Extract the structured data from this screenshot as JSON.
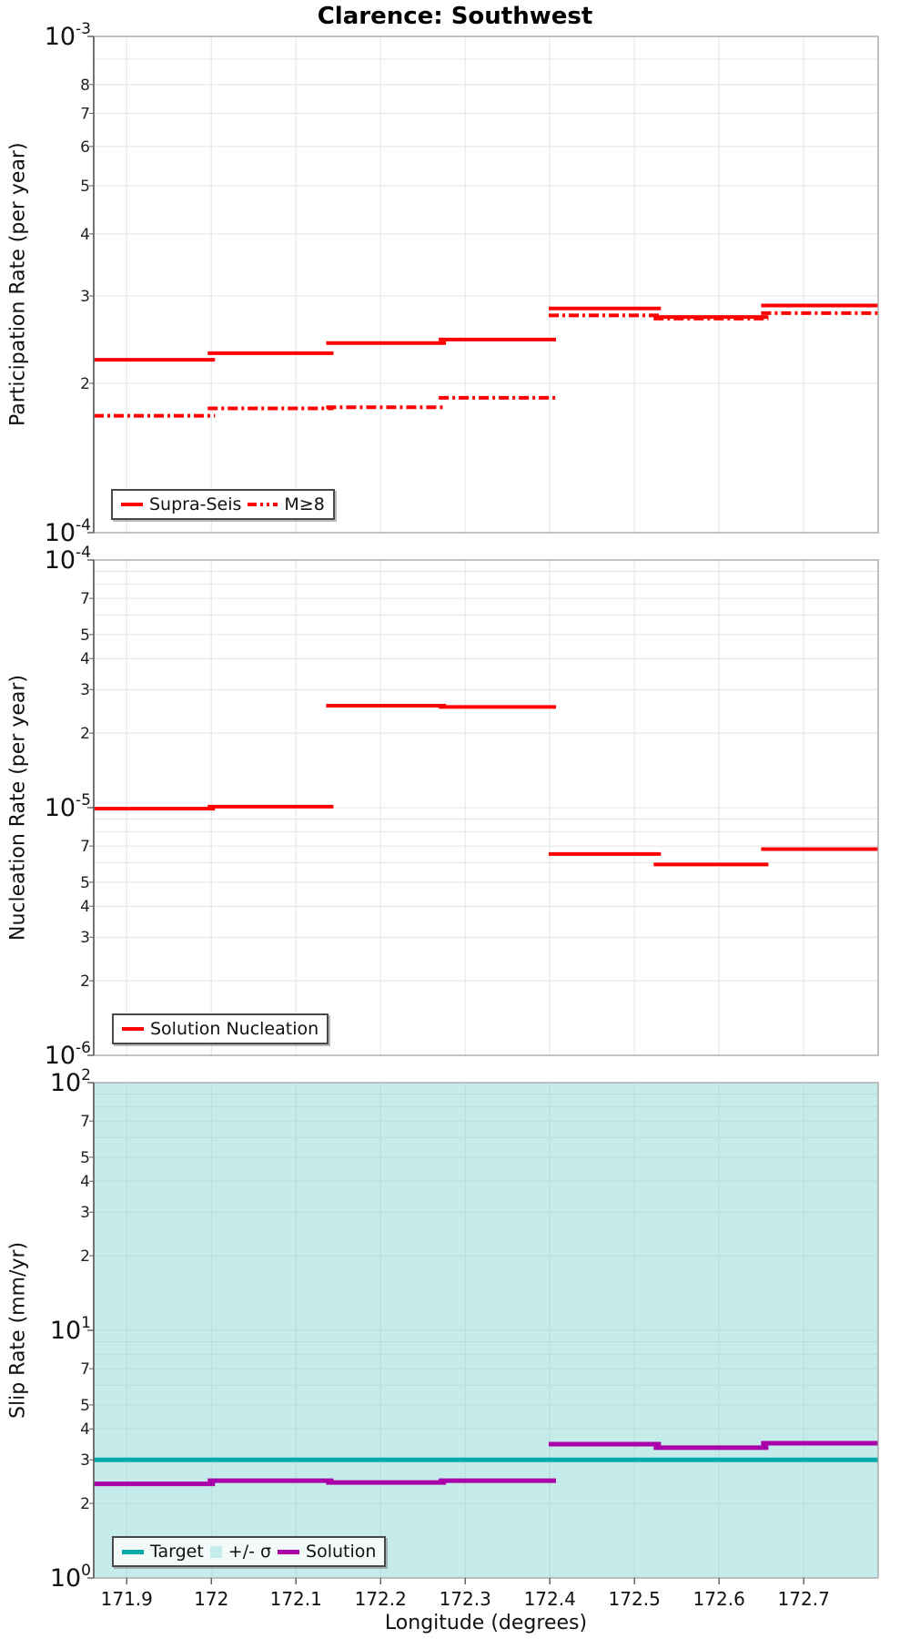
{
  "title": "Clarence: Southwest",
  "colors": {
    "red": "#FF0000",
    "teal": "#00AAAA",
    "purple": "#AA00AA",
    "band": "#C6EBEB",
    "grid": "#E4E4E4",
    "grid_on_band": "#B7DCDC",
    "frame": "#A9A9A9",
    "spine": "#5A5A5A",
    "text": "#111111"
  },
  "chart_data": {
    "type": "line",
    "subtype": "log-step-chart",
    "title": "Clarence: Southwest",
    "grid": true,
    "x_axis": {
      "label": "Longitude (degrees)",
      "range": [
        171.861,
        172.788
      ],
      "ticks": [
        171.9,
        172.0,
        172.1,
        172.2,
        172.3,
        172.4,
        172.5,
        172.6,
        172.7
      ],
      "tick_labels": [
        "171.9",
        "172",
        "172.1",
        "172.2",
        "172.3",
        "172.4",
        "172.5",
        "172.6",
        "172.7"
      ]
    },
    "section_edges": [
      171.861,
      172.0,
      172.14,
      172.273,
      172.403,
      172.527,
      172.654,
      172.788
    ],
    "panels": [
      {
        "id": "participation",
        "ylabel": "Participation Rate (per year)",
        "scale": "log",
        "ylim_exp": [
          -4,
          -3
        ],
        "legend_position": "bottom-left",
        "minor_labeled": [
          {
            "exp": -4,
            "digits": [
              8,
              7,
              6,
              5,
              4,
              3,
              2
            ]
          }
        ],
        "series": [
          {
            "name": "Supra-Seis",
            "style": "solid",
            "color": "#FF0000",
            "line_width": 4,
            "step_values": [
              0.000223,
              0.00023,
              0.000241,
              0.000245,
              0.000283,
              0.000272,
              0.000287
            ]
          },
          {
            "name": "M≥8",
            "style": "dashdot",
            "color": "#FF0000",
            "line_width": 4,
            "step_values": [
              0.000172,
              0.000178,
              0.000179,
              0.000187,
              0.000274,
              0.00027,
              0.000277
            ]
          }
        ]
      },
      {
        "id": "nucleation",
        "ylabel": "Nucleation Rate (per year)",
        "scale": "log",
        "ylim_exp": [
          -6,
          -4
        ],
        "legend_position": "bottom-left",
        "minor_labeled": [
          {
            "exp": -5,
            "digits": [
              7,
              5,
              4,
              3,
              2
            ]
          },
          {
            "exp": -6,
            "digits": [
              7,
              5,
              4,
              3,
              2
            ]
          }
        ],
        "series": [
          {
            "name": "Solution Nucleation",
            "style": "solid",
            "color": "#FF0000",
            "line_width": 4,
            "step_values": [
              9.9e-06,
              1.01e-05,
              2.58e-05,
              2.55e-05,
              6.5e-06,
              5.9e-06,
              6.8e-06
            ]
          }
        ]
      },
      {
        "id": "slip-rate",
        "ylabel": "Slip Rate (mm/yr)",
        "scale": "log",
        "ylim_exp": [
          0,
          2
        ],
        "legend_position": "bottom-left",
        "minor_labeled": [
          {
            "exp": 1,
            "digits": [
              7,
              5,
              4,
              3,
              2
            ]
          },
          {
            "exp": 0,
            "digits": [
              7,
              5,
              4,
              3,
              2
            ]
          }
        ],
        "band": {
          "label": "+/- σ",
          "lo": 1,
          "hi": 100,
          "color": "#C6EBEB"
        },
        "series": [
          {
            "name": "Target",
            "style": "solid",
            "color": "#00AAAA",
            "line_width": 5,
            "hline": 3.0
          },
          {
            "name": "Solution",
            "style": "solid",
            "color": "#AA00AA",
            "line_width": 5,
            "step_values": [
              2.4,
              2.47,
              2.43,
              2.47,
              3.47,
              3.36,
              3.5
            ]
          }
        ]
      }
    ]
  }
}
